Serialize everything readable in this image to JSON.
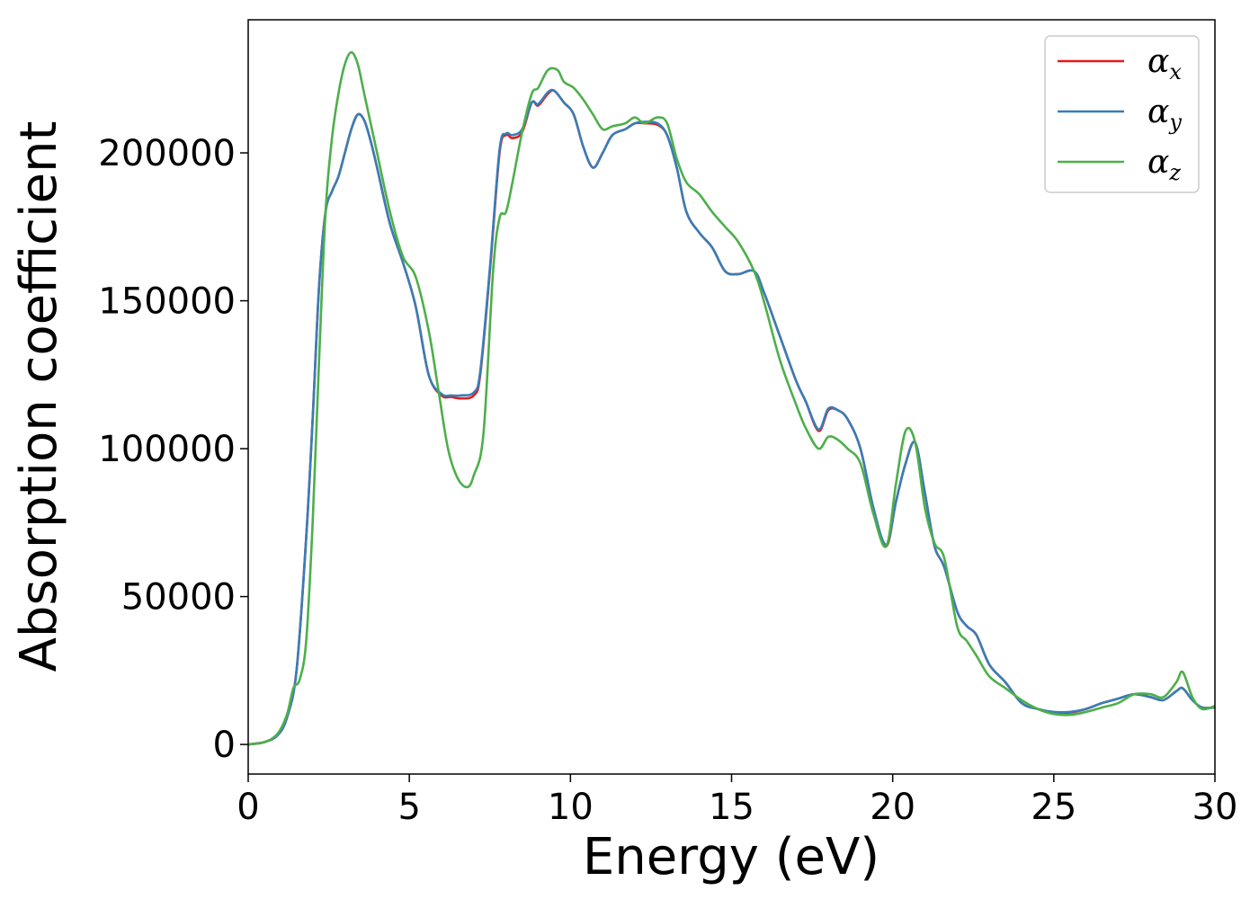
{
  "chart_data": {
    "type": "line",
    "xlabel": "Energy (eV)",
    "ylabel": "Absorption coefficient",
    "xlim": [
      0,
      30
    ],
    "ylim": [
      -10000,
      245000
    ],
    "xticks": [
      0,
      5,
      10,
      15,
      20,
      25,
      30
    ],
    "xtick_labels": [
      "0",
      "5",
      "10",
      "15",
      "20",
      "25",
      "30"
    ],
    "yticks": [
      0,
      50000,
      100000,
      150000,
      200000
    ],
    "ytick_labels": [
      "0",
      "50000",
      "100000",
      "150000",
      "200000"
    ],
    "grid": false,
    "legend_position": "top-right",
    "colors": {
      "alpha_x": "#e41a1c",
      "alpha_y": "#377eb8",
      "alpha_z": "#4daf4a"
    },
    "series": [
      {
        "name": "α_x",
        "legend_base": "α",
        "legend_sub": "x",
        "color": "#e41a1c",
        "x": [
          0,
          0.5,
          0.9,
          1.2,
          1.5,
          1.8,
          2.0,
          2.2,
          2.4,
          2.6,
          2.8,
          3.0,
          3.2,
          3.4,
          3.6,
          3.8,
          4.0,
          4.4,
          4.8,
          5.2,
          5.6,
          6.0,
          6.3,
          6.6,
          7.0,
          7.2,
          7.5,
          7.8,
          8.0,
          8.2,
          8.5,
          8.8,
          9.0,
          9.3,
          9.5,
          9.8,
          10.1,
          10.4,
          10.7,
          11.0,
          11.3,
          11.7,
          12.0,
          12.3,
          12.7,
          13.0,
          13.3,
          13.6,
          14.0,
          14.4,
          14.8,
          15.2,
          15.7,
          16.0,
          16.5,
          17.0,
          17.3,
          17.7,
          18.0,
          18.3,
          18.6,
          19.0,
          19.4,
          19.8,
          20.1,
          20.4,
          20.7,
          21.0,
          21.3,
          21.6,
          22.0,
          22.3,
          22.6,
          23.0,
          23.5,
          24.0,
          24.5,
          25.0,
          25.5,
          26.0,
          26.5,
          27.0,
          27.5,
          28.0,
          28.4,
          28.8,
          29.0,
          29.3,
          29.6,
          30.0
        ],
        "y": [
          0,
          800,
          3000,
          9000,
          25000,
          70000,
          110000,
          155000,
          180000,
          187000,
          192000,
          200000,
          208000,
          213000,
          211000,
          204000,
          195000,
          176000,
          163000,
          148000,
          125000,
          118000,
          117500,
          117000,
          118000,
          125000,
          160000,
          200000,
          206000,
          205000,
          207000,
          217000,
          216000,
          220000,
          221000,
          217000,
          213000,
          202000,
          195000,
          200000,
          206000,
          208000,
          210000,
          210000,
          209500,
          206000,
          195000,
          180000,
          173000,
          168000,
          160000,
          159000,
          160000,
          153000,
          138000,
          123000,
          116000,
          106000,
          113000,
          113000,
          110000,
          100000,
          80000,
          67000,
          82000,
          95000,
          102000,
          85000,
          67000,
          60000,
          45000,
          40000,
          37000,
          27000,
          21000,
          14000,
          12000,
          10800,
          10800,
          12000,
          14000,
          15500,
          17000,
          16000,
          15000,
          18000,
          19000,
          15000,
          12500,
          12500
        ]
      },
      {
        "name": "α_y",
        "legend_base": "α",
        "legend_sub": "y",
        "color": "#377eb8",
        "x": [
          0,
          0.5,
          0.9,
          1.2,
          1.5,
          1.8,
          2.0,
          2.2,
          2.4,
          2.6,
          2.8,
          3.0,
          3.2,
          3.4,
          3.6,
          3.8,
          4.0,
          4.4,
          4.8,
          5.2,
          5.6,
          6.0,
          6.3,
          6.6,
          7.0,
          7.2,
          7.5,
          7.8,
          8.0,
          8.2,
          8.5,
          8.8,
          9.0,
          9.3,
          9.5,
          9.8,
          10.1,
          10.4,
          10.7,
          11.0,
          11.3,
          11.7,
          12.0,
          12.3,
          12.7,
          13.0,
          13.3,
          13.6,
          14.0,
          14.4,
          14.8,
          15.2,
          15.7,
          16.0,
          16.5,
          17.0,
          17.3,
          17.7,
          18.0,
          18.3,
          18.6,
          19.0,
          19.4,
          19.8,
          20.1,
          20.4,
          20.7,
          21.0,
          21.3,
          21.6,
          22.0,
          22.3,
          22.6,
          23.0,
          23.5,
          24.0,
          24.5,
          25.0,
          25.5,
          26.0,
          26.5,
          27.0,
          27.5,
          28.0,
          28.4,
          28.8,
          29.0,
          29.3,
          29.6,
          30.0
        ],
        "y": [
          0,
          800,
          3000,
          9000,
          25000,
          70000,
          110000,
          155000,
          180000,
          187000,
          192000,
          200000,
          208000,
          213000,
          211000,
          204000,
          195000,
          176000,
          163000,
          148000,
          125000,
          118500,
          118000,
          118000,
          119000,
          126000,
          161000,
          201000,
          206500,
          206000,
          208000,
          217000,
          216500,
          220500,
          221000,
          217000,
          213000,
          202000,
          195000,
          200000,
          206000,
          208000,
          210000,
          210500,
          210000,
          206000,
          195000,
          180000,
          173000,
          168000,
          160000,
          159000,
          160000,
          153000,
          138000,
          123000,
          116000,
          106500,
          113500,
          113000,
          110000,
          100000,
          80000,
          67500,
          82000,
          95000,
          102000,
          85000,
          67000,
          60000,
          45000,
          40000,
          37000,
          27000,
          21000,
          14000,
          12000,
          11000,
          11000,
          12000,
          14000,
          15500,
          17000,
          16000,
          15000,
          18000,
          19000,
          15000,
          12500,
          12500
        ]
      },
      {
        "name": "α_z",
        "legend_base": "α",
        "legend_sub": "z",
        "color": "#4daf4a",
        "x": [
          0,
          0.5,
          0.9,
          1.2,
          1.4,
          1.6,
          1.8,
          2.0,
          2.2,
          2.4,
          2.6,
          2.8,
          3.0,
          3.2,
          3.4,
          3.6,
          3.8,
          4.0,
          4.4,
          4.8,
          5.2,
          5.6,
          5.9,
          6.2,
          6.5,
          6.8,
          7.0,
          7.3,
          7.6,
          7.8,
          8.0,
          8.2,
          8.5,
          8.8,
          9.0,
          9.3,
          9.6,
          9.8,
          10.1,
          10.4,
          10.7,
          11.0,
          11.3,
          11.7,
          12.0,
          12.3,
          12.7,
          13.0,
          13.3,
          13.6,
          14.0,
          14.4,
          14.8,
          15.2,
          15.7,
          16.0,
          16.5,
          17.0,
          17.3,
          17.7,
          18.0,
          18.3,
          18.6,
          19.0,
          19.4,
          19.8,
          20.1,
          20.4,
          20.7,
          21.0,
          21.3,
          21.6,
          22.0,
          22.3,
          22.6,
          23.0,
          23.5,
          24.0,
          24.5,
          25.0,
          25.5,
          26.0,
          26.5,
          27.0,
          27.5,
          28.0,
          28.4,
          28.8,
          29.0,
          29.3,
          29.6,
          30.0
        ],
        "y": [
          0,
          800,
          3500,
          10000,
          19000,
          22000,
          35000,
          75000,
          130000,
          180000,
          205000,
          220000,
          230000,
          234000,
          230000,
          220000,
          210000,
          200000,
          180000,
          165000,
          158000,
          140000,
          120000,
          100000,
          90000,
          87000,
          91000,
          105000,
          160000,
          178000,
          180000,
          190000,
          207000,
          220000,
          222000,
          228000,
          228000,
          224000,
          222000,
          218000,
          213000,
          208000,
          209000,
          210000,
          212000,
          210000,
          212000,
          210000,
          198000,
          190000,
          186000,
          180000,
          175000,
          170000,
          160000,
          150000,
          130000,
          115000,
          107000,
          100000,
          104000,
          103000,
          100000,
          95000,
          78000,
          67000,
          88000,
          106000,
          102000,
          80000,
          68000,
          63000,
          40000,
          35000,
          30000,
          23000,
          19000,
          15000,
          12000,
          10300,
          10000,
          11000,
          12500,
          14000,
          17000,
          17000,
          16000,
          21000,
          24500,
          16000,
          12000,
          13000
        ]
      }
    ]
  }
}
